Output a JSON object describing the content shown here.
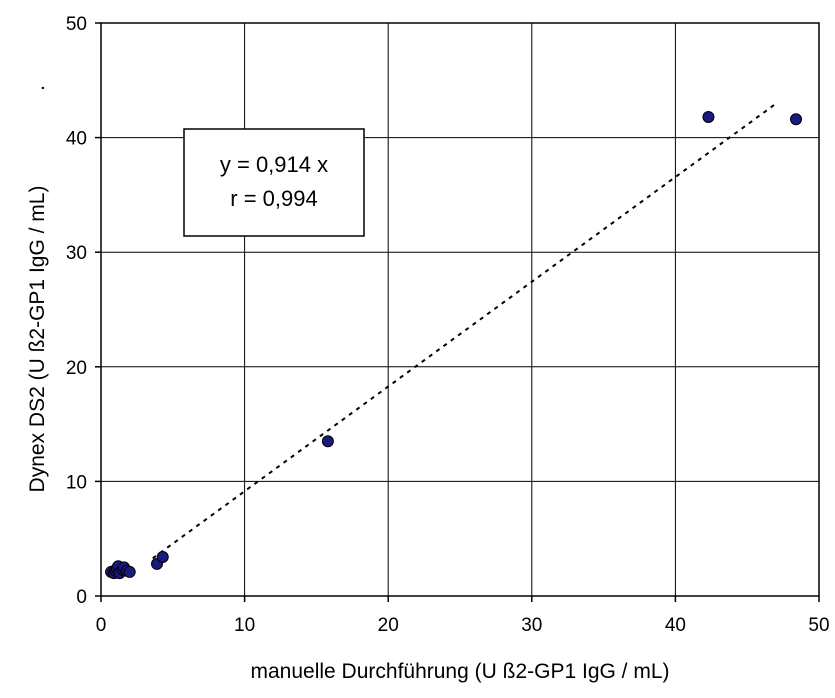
{
  "chart_data": {
    "type": "scatter",
    "title": "",
    "xlabel": "manuelle Durchführung (U  ß2-GP1 IgG / mL)",
    "ylabel": "Dynex DS2 (U  ß2-GP1 IgG / mL)",
    "ylabel_suffix": ".",
    "xlim": [
      0,
      50
    ],
    "ylim": [
      0,
      50
    ],
    "x_ticks": [
      0,
      10,
      20,
      30,
      40,
      50
    ],
    "y_ticks": [
      0,
      10,
      20,
      30,
      40,
      50
    ],
    "x_tick_labels": [
      "0",
      "10",
      "20",
      "30",
      "40",
      "50"
    ],
    "y_tick_labels": [
      "0",
      "10",
      "20",
      "30",
      "40",
      "50"
    ],
    "grid": true,
    "marker_color": "#1a1a80",
    "points": [
      {
        "x": 0.7,
        "y": 2.1
      },
      {
        "x": 0.9,
        "y": 2.0
      },
      {
        "x": 1.0,
        "y": 2.2
      },
      {
        "x": 1.1,
        "y": 2.4
      },
      {
        "x": 1.2,
        "y": 2.6
      },
      {
        "x": 1.3,
        "y": 2.0
      },
      {
        "x": 1.5,
        "y": 2.3
      },
      {
        "x": 1.6,
        "y": 2.5
      },
      {
        "x": 1.8,
        "y": 2.2
      },
      {
        "x": 2.0,
        "y": 2.1
      },
      {
        "x": 3.9,
        "y": 2.8
      },
      {
        "x": 4.3,
        "y": 3.4
      },
      {
        "x": 15.8,
        "y": 13.5
      },
      {
        "x": 42.3,
        "y": 41.8
      },
      {
        "x": 48.4,
        "y": 41.6
      }
    ],
    "trendline": {
      "slope": 0.914,
      "x_range": [
        3.6,
        47.0
      ],
      "style": "dotted"
    },
    "annotation": {
      "line1": "y = 0,914 x",
      "line2": "r = 0,994"
    }
  }
}
